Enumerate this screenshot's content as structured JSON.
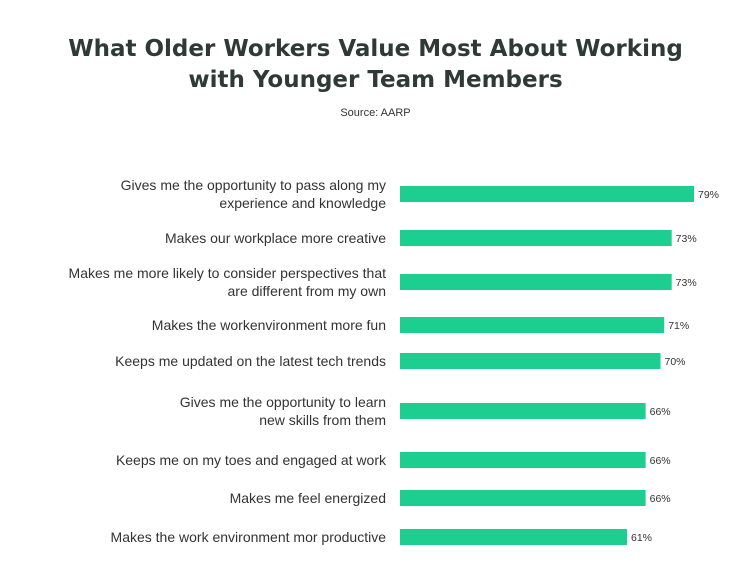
{
  "title_line1": "What Older Workers Value Most About Working",
  "title_line2": "with Younger Team Members",
  "source": "Source:  AARP",
  "chart_data": {
    "type": "bar",
    "orientation": "horizontal",
    "categories": [
      [
        "Gives me the opportunity to pass along my",
        "experience and knowledge"
      ],
      [
        "Makes our workplace more creative"
      ],
      [
        "Makes me more likely to consider perspectives that",
        "are different from my own"
      ],
      [
        "Makes the workenvironment more fun"
      ],
      [
        "Keeps me updated on the latest tech trends"
      ],
      [
        "Gives me the opportunity to learn",
        "new skills from them"
      ],
      [
        "Keeps me on my toes and engaged at work"
      ],
      [
        "Makes me feel energized"
      ],
      [
        "Makes the work environment mor productive"
      ]
    ],
    "values": [
      79,
      73,
      73,
      71,
      70,
      66,
      66,
      66,
      61
    ],
    "value_labels": [
      "79%",
      "73%",
      "73%",
      "71%",
      "70%",
      "66%",
      "66%",
      "66%",
      "61%"
    ],
    "bar_color": "#1ccf91",
    "xlim": [
      0,
      79
    ]
  }
}
